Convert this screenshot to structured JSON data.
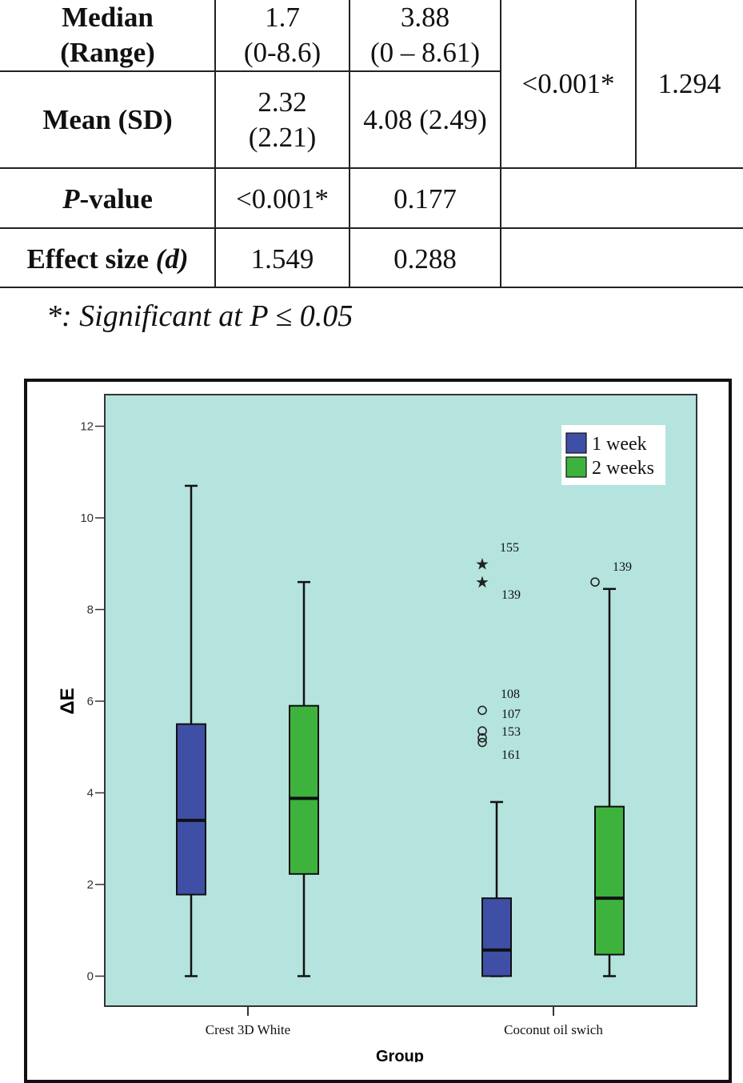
{
  "table": {
    "rows": [
      {
        "label_line1": "Median",
        "label_line2": "(Range)",
        "col1_line1": "1.7",
        "col1_line2": "(0-8.6)",
        "col2_line1": "3.88",
        "col2_line2": "(0 – 8.61)"
      },
      {
        "label": "Mean (SD)",
        "col1_line1": "2.32",
        "col1_line2": "(2.21)",
        "col2": "4.08 (2.49)"
      },
      {
        "label_italic": "P",
        "label_rest": "-value",
        "col1": "<0.001*",
        "col2": "0.177"
      },
      {
        "label_text": "Effect size ",
        "label_italic": "(d)",
        "col1": "1.549",
        "col2": "0.288"
      }
    ],
    "merged_pvalue": "<0.001*",
    "merged_effect": "1.294"
  },
  "footnote": "*: Significant at P ≤ 0.05",
  "chart_data": {
    "type": "box",
    "title": "",
    "xlabel": "Group",
    "ylabel": "ΔE",
    "ylim": [
      -0.6,
      12.7
    ],
    "yticks": [
      "0",
      "2",
      "4",
      "6",
      "8",
      "10",
      "12"
    ],
    "categories": [
      "Crest 3D White",
      "Coconut oil swich"
    ],
    "legend": {
      "position": "top-right",
      "entries": [
        "1 week",
        "2 weeks"
      ]
    },
    "colors": {
      "1 week": "#3f4fa6",
      "2 weeks": "#3db33d",
      "background": "#b5e3dd"
    },
    "series": [
      {
        "name": "1 week",
        "boxes": [
          {
            "category": "Crest 3D White",
            "min": 0,
            "q1": 1.78,
            "median": 3.4,
            "q3": 5.5,
            "max": 10.7,
            "outliers": []
          },
          {
            "category": "Coconut oil swich",
            "min": 0,
            "q1": 0,
            "median": 0.57,
            "q3": 1.7,
            "max": 3.8,
            "outliers": [
              {
                "value": 9.0,
                "label": "155",
                "marker": "star"
              },
              {
                "value": 8.6,
                "label": "139",
                "marker": "star"
              },
              {
                "value": 5.8,
                "label": "108",
                "marker": "circle"
              },
              {
                "value": 5.35,
                "label": "107",
                "marker": "circle"
              },
              {
                "value": 5.2,
                "label": "153",
                "marker": "circle"
              },
              {
                "value": 5.1,
                "label": "161",
                "marker": "circle"
              }
            ]
          }
        ]
      },
      {
        "name": "2 weeks",
        "boxes": [
          {
            "category": "Crest 3D White",
            "min": 0,
            "q1": 2.23,
            "median": 3.88,
            "q3": 5.9,
            "max": 8.6,
            "outliers": []
          },
          {
            "category": "Coconut oil swich",
            "min": 0,
            "q1": 0.47,
            "median": 1.7,
            "q3": 3.7,
            "max": 8.45,
            "outliers": [
              {
                "value": 8.6,
                "label": "139",
                "marker": "circle"
              }
            ]
          }
        ]
      }
    ]
  }
}
